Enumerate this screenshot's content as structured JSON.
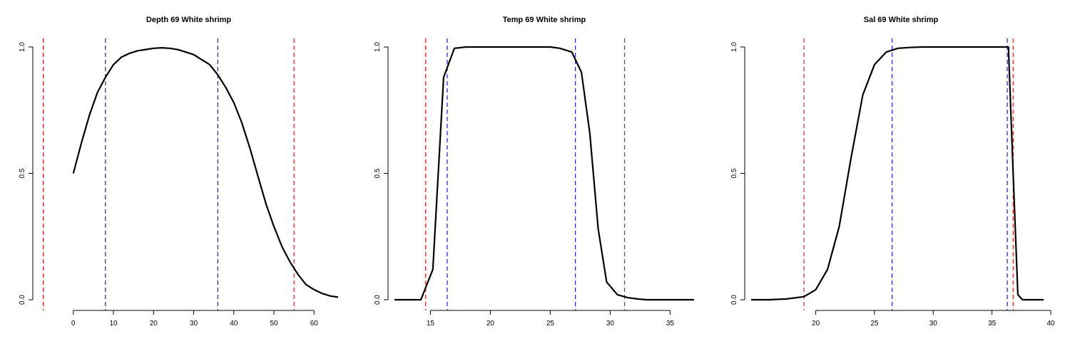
{
  "colors": {
    "red_line": "#e0191e",
    "blue_line": "#1f1fc2",
    "curve": "#000000"
  },
  "chart_data": [
    {
      "type": "line",
      "title": "Depth 69 White shrimp",
      "xlim": [
        -8.5,
        66
      ],
      "ylim": [
        0,
        1
      ],
      "x_ticks": [
        0,
        10,
        20,
        30,
        40,
        50,
        60
      ],
      "y_ticks": [
        0.0,
        0.5,
        1.0
      ],
      "y_tick_labels": [
        "0.0",
        "0.5",
        "1.0"
      ],
      "red_lines": [
        -7.5,
        55
      ],
      "blue_lines": [
        8,
        36
      ],
      "series": [
        {
          "x": [
            0,
            2,
            4,
            6,
            8,
            10,
            12,
            14,
            16,
            18,
            20,
            22,
            24,
            26,
            28,
            30,
            32,
            34,
            36,
            38,
            40,
            42,
            44,
            46,
            48,
            50,
            52,
            54,
            56,
            58,
            60,
            62,
            64,
            66
          ],
          "y": [
            0.5,
            0.62,
            0.73,
            0.82,
            0.88,
            0.93,
            0.96,
            0.975,
            0.985,
            0.99,
            0.995,
            0.997,
            0.995,
            0.99,
            0.98,
            0.97,
            0.95,
            0.93,
            0.89,
            0.84,
            0.78,
            0.7,
            0.6,
            0.49,
            0.38,
            0.29,
            0.21,
            0.15,
            0.1,
            0.06,
            0.04,
            0.025,
            0.015,
            0.01
          ]
        }
      ]
    },
    {
      "type": "line",
      "title": "Temp 69 White shrimp",
      "xlim": [
        12,
        37
      ],
      "ylim": [
        0,
        1
      ],
      "x_ticks": [
        15,
        20,
        25,
        30,
        35
      ],
      "y_ticks": [
        0.0,
        0.5,
        1.0
      ],
      "y_tick_labels": [
        "0.0",
        "0.5",
        "1.0"
      ],
      "red_lines": [
        14.6,
        31.2
      ],
      "blue_lines": [
        16.4,
        27.1
      ],
      "series": [
        {
          "x": [
            12,
            14.2,
            15.2,
            16.1,
            17.0,
            18.0,
            20.0,
            22.0,
            24.0,
            25.0,
            25.8,
            26.8,
            27.6,
            28.3,
            29.0,
            29.7,
            30.6,
            31.5,
            32.3,
            33.0,
            34.0,
            35.0,
            37.0
          ],
          "y": [
            0,
            0,
            0.12,
            0.88,
            0.995,
            1.0,
            1.0,
            1.0,
            1.0,
            1.0,
            0.995,
            0.98,
            0.9,
            0.66,
            0.28,
            0.07,
            0.02,
            0.008,
            0.003,
            0.0,
            0.0,
            0.0,
            0.0
          ]
        }
      ]
    },
    {
      "type": "line",
      "title": "Sal 69 White shrimp",
      "xlim": [
        14.5,
        40
      ],
      "ylim": [
        0,
        1
      ],
      "x_ticks": [
        20,
        25,
        30,
        35,
        40
      ],
      "y_ticks": [
        0.0,
        0.5,
        1.0
      ],
      "y_tick_labels": [
        "0.0",
        "0.5",
        "1.0"
      ],
      "red_lines": [
        19,
        36.8
      ],
      "blue_lines": [
        26.5,
        36.3
      ],
      "series": [
        {
          "x": [
            14.5,
            16,
            17.5,
            19,
            20,
            21,
            22,
            23,
            24,
            25,
            26,
            27,
            28,
            29,
            30,
            33,
            36,
            36.4,
            36.8,
            37.2,
            37.6,
            38.5,
            39.4
          ],
          "y": [
            0.0,
            0.0,
            0.003,
            0.012,
            0.04,
            0.12,
            0.29,
            0.56,
            0.81,
            0.93,
            0.98,
            0.995,
            0.998,
            1.0,
            1.0,
            1.0,
            1.0,
            1.0,
            0.5,
            0.02,
            0.0,
            0.0,
            0.0
          ]
        }
      ]
    }
  ]
}
